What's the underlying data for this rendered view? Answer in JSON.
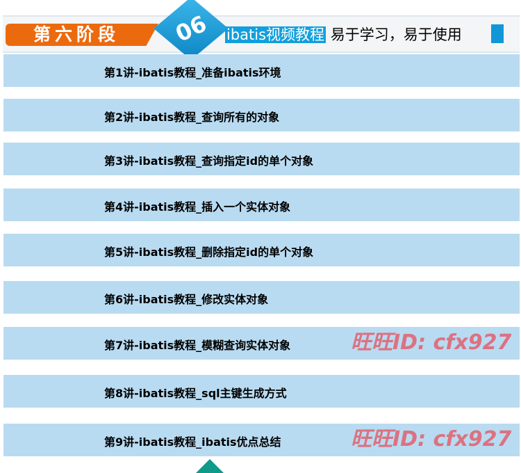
{
  "header": {
    "stage_label": "第六阶段",
    "stage_number": "06",
    "title_highlight": "ibatis视频教程",
    "title_rest": " 易于学习，易于使用"
  },
  "lessons": [
    "第1讲-ibatis教程_准备ibatis环境",
    "第2讲-ibatis教程_查询所有的对象",
    "第3讲-ibatis教程_查询指定id的单个对象",
    "第4讲-ibatis教程_插入一个实体对象",
    "第5讲-ibatis教程_删除指定id的单个对象",
    "第6讲-ibatis教程_修改实体对象",
    "第7讲-ibatis教程_模糊查询实体对象",
    "第8讲-ibatis教程_sql主键生成方式",
    "第9讲-ibatis教程_ibatis优点总结"
  ],
  "watermark": "旺旺ID: cfx927",
  "colors": {
    "orange": "#ec6a0e",
    "blue": "#139fdc",
    "row": "#b9dbf1"
  }
}
